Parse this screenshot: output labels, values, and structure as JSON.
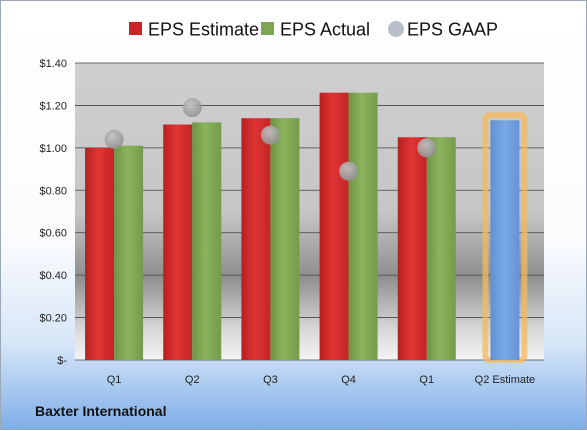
{
  "company": "Baxter International",
  "chart_data": {
    "type": "bar",
    "categories": [
      "Q1",
      "Q2",
      "Q3",
      "Q4",
      "Q1",
      "Q2 Estimate"
    ],
    "ylim": [
      0,
      1.4
    ],
    "yticks": [
      "$-",
      "$0.20",
      "$0.40",
      "$0.60",
      "$0.80",
      "$1.00",
      "$1.20",
      "$1.40"
    ],
    "ytick_values": [
      0,
      0.2,
      0.4,
      0.6,
      0.8,
      1.0,
      1.2,
      1.4
    ],
    "legend_position": "top",
    "series": [
      {
        "name": "EPS Estimate",
        "type": "bar",
        "color": "#d32a2a",
        "values": [
          1.0,
          1.11,
          1.14,
          1.26,
          1.05,
          null
        ]
      },
      {
        "name": "EPS Actual",
        "type": "bar",
        "color": "#7fa552",
        "values": [
          1.01,
          1.12,
          1.14,
          1.26,
          1.05,
          null
        ]
      },
      {
        "name": "EPS GAAP",
        "type": "scatter",
        "color": "#a5a5a5",
        "values": [
          1.04,
          1.19,
          1.06,
          0.89,
          1.0,
          null
        ]
      },
      {
        "name": "",
        "type": "bar",
        "color": "#6f9fdc",
        "highlight": "#f5b85a",
        "values": [
          null,
          null,
          null,
          null,
          null,
          1.13
        ]
      }
    ]
  }
}
